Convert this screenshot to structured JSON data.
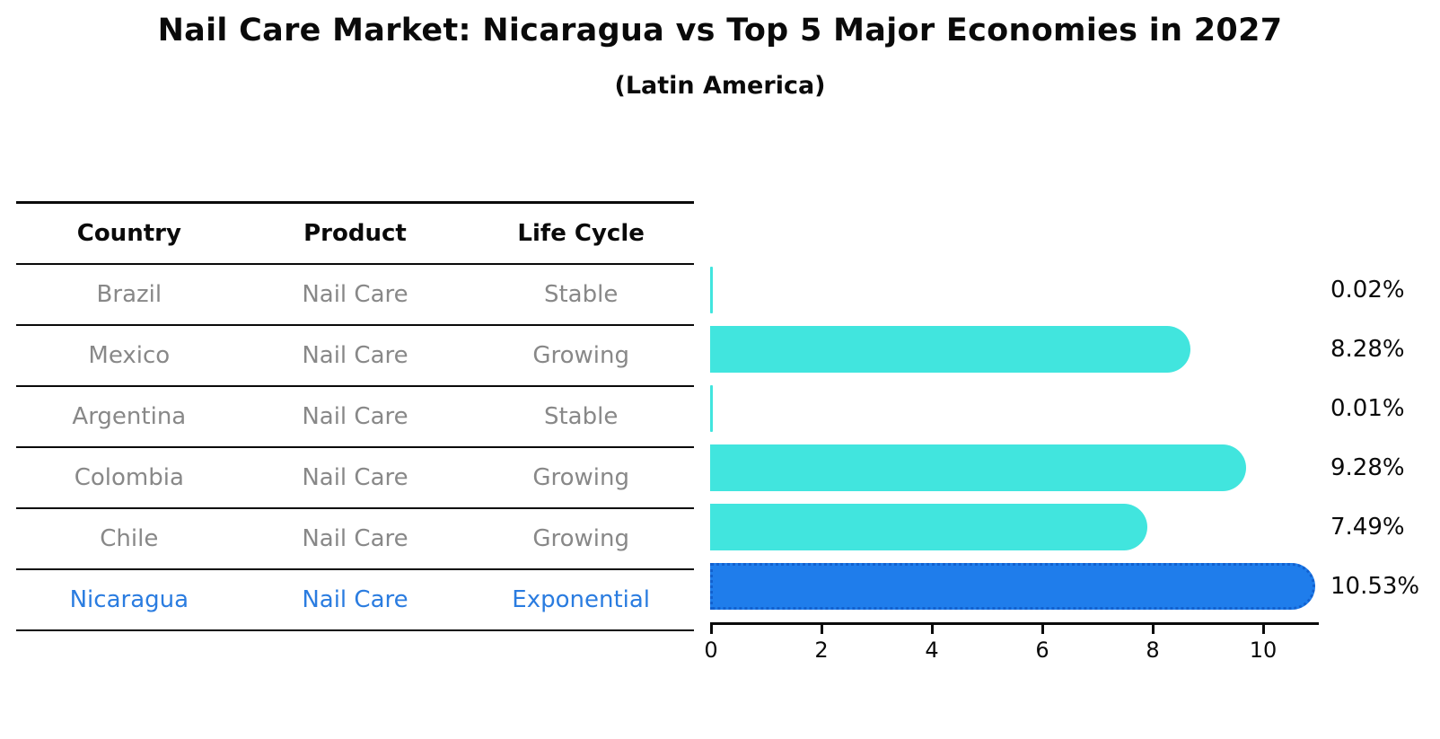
{
  "title": "Nail Care Market: Nicaragua vs Top 5 Major Economies in 2027",
  "subtitle": "(Latin America)",
  "table": {
    "headers": [
      "Country",
      "Product",
      "Life Cycle"
    ],
    "rows": [
      {
        "country": "Brazil",
        "product": "Nail Care",
        "life_cycle": "Stable"
      },
      {
        "country": "Mexico",
        "product": "Nail Care",
        "life_cycle": "Growing"
      },
      {
        "country": "Argentina",
        "product": "Nail Care",
        "life_cycle": "Stable"
      },
      {
        "country": "Colombia",
        "product": "Nail Care",
        "life_cycle": "Growing"
      },
      {
        "country": "Chile",
        "product": "Nail Care",
        "life_cycle": "Growing"
      },
      {
        "country": "Nicaragua",
        "product": "Nail Care",
        "life_cycle": "Exponential"
      }
    ]
  },
  "chart_data": {
    "type": "bar",
    "orientation": "horizontal",
    "title": "Nail Care Market: Nicaragua vs Top 5 Major Economies in 2027",
    "subtitle": "(Latin America)",
    "categories": [
      "Brazil",
      "Mexico",
      "Argentina",
      "Colombia",
      "Chile",
      "Nicaragua"
    ],
    "values": [
      0.02,
      8.28,
      0.01,
      9.28,
      7.49,
      10.53
    ],
    "value_labels": [
      "0.02%",
      "8.28%",
      "0.01%",
      "9.28%",
      "7.49%",
      "10.53%"
    ],
    "unit": "%",
    "xticks": [
      0,
      2,
      4,
      6,
      8,
      10
    ],
    "xlim": [
      0,
      11
    ],
    "grid": false,
    "legend": "none",
    "highlight_index": 5,
    "colors": {
      "default_bar": "#41e5de",
      "highlight_bar": "#1f7deb",
      "highlight_edge": "#1261cf",
      "highlight_text": "#2a7ce0",
      "muted_text": "#888888",
      "axis": "#0a0a0a"
    }
  }
}
